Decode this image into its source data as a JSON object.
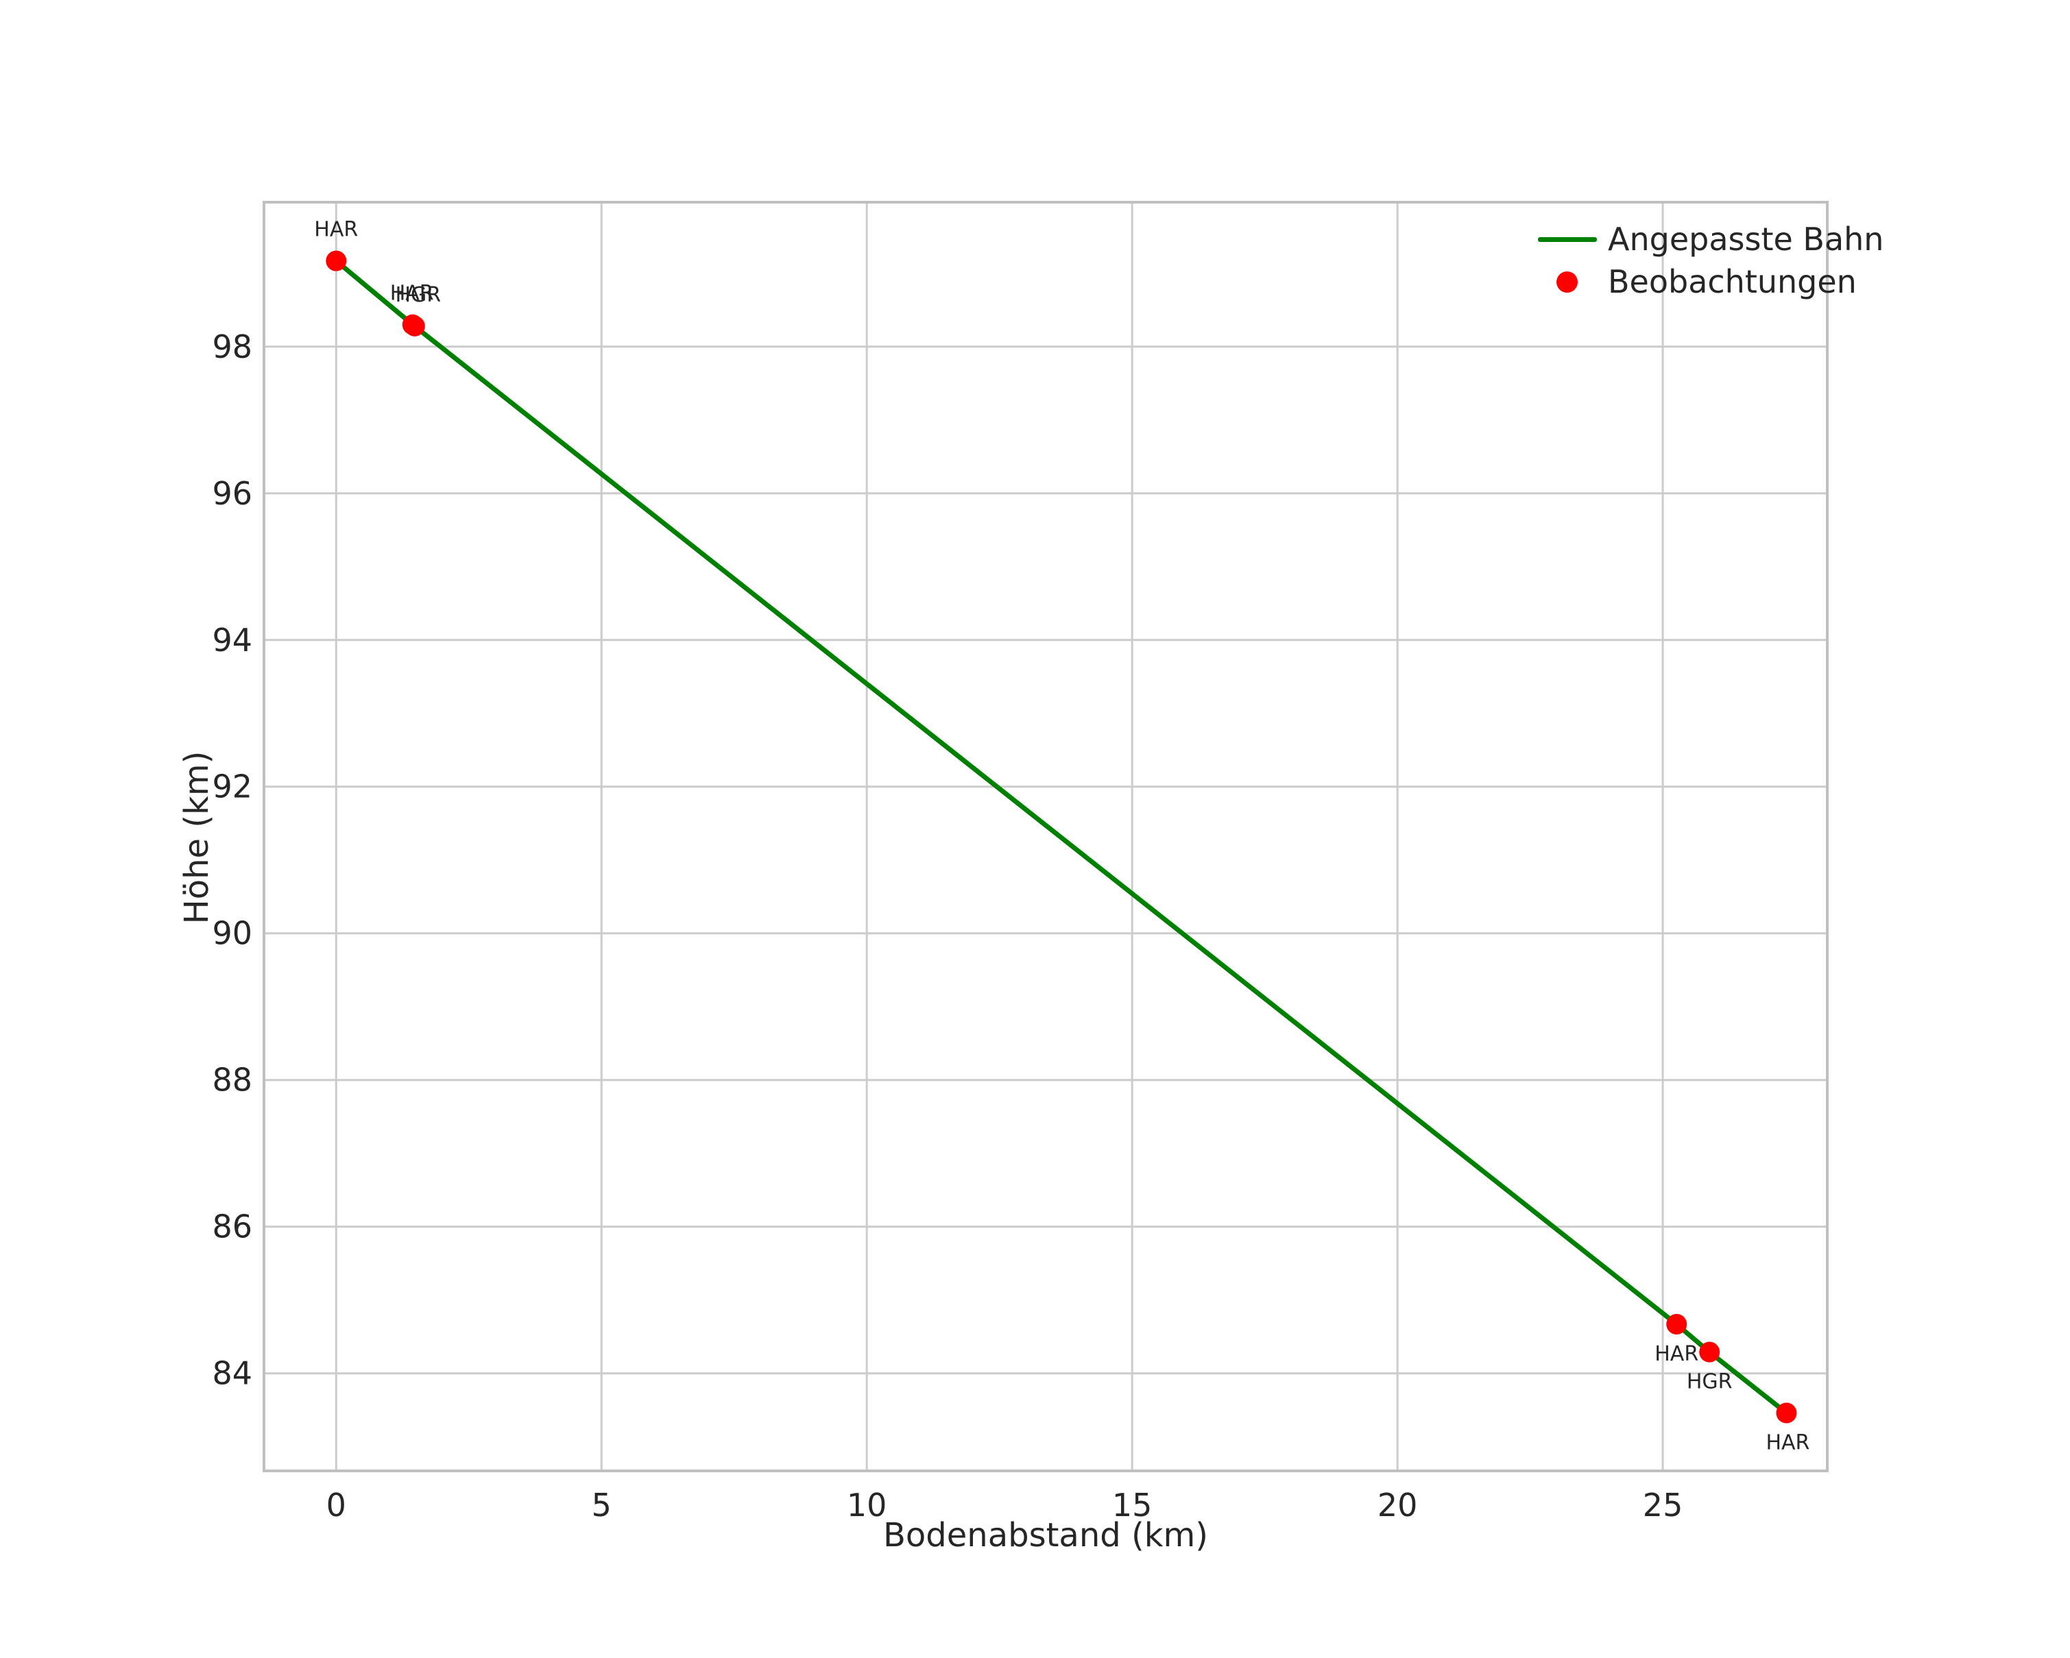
{
  "chart_data": {
    "type": "line",
    "title": "",
    "xlabel": "Bodenabstand (km)",
    "ylabel": "Höhe (km)",
    "xlim": [
      -1.36,
      28.1
    ],
    "ylim": [
      82.67,
      99.97
    ],
    "xticks": [
      0,
      5,
      10,
      15,
      20,
      25
    ],
    "yticks": [
      84,
      86,
      88,
      90,
      92,
      94,
      96,
      98
    ],
    "grid": true,
    "legend_position": "upper right",
    "colors": {
      "line": "#008000",
      "marker": "#ff0000",
      "grid": "#cccccc",
      "spine": "#c0c0c0",
      "text": "#262626",
      "background": "#ffffff"
    },
    "series": [
      {
        "name": "Angepasste Bahn",
        "type": "line",
        "color": "#008000",
        "points": [
          [
            0.0,
            99.17
          ],
          [
            1.46,
            98.29
          ],
          [
            25.26,
            84.67
          ],
          [
            25.88,
            84.29
          ],
          [
            27.33,
            83.46
          ]
        ]
      },
      {
        "name": "Beobachtungen",
        "type": "scatter",
        "color": "#ff0000",
        "points": [
          {
            "x": 0.0,
            "y": 99.17,
            "label": "HAR",
            "label_side": "above",
            "dx": 0
          },
          {
            "x": 1.44,
            "y": 98.3,
            "label": "HAR",
            "label_side": "above",
            "dx": -1
          },
          {
            "x": 1.48,
            "y": 98.28,
            "label": "HGR",
            "label_side": "above",
            "dx": 5
          },
          {
            "x": 25.26,
            "y": 84.67,
            "label": "HAR",
            "label_side": "below",
            "dx": 0
          },
          {
            "x": 25.88,
            "y": 84.29,
            "label": "HGR",
            "label_side": "below",
            "dx": 0
          },
          {
            "x": 27.33,
            "y": 83.46,
            "label": "HAR",
            "label_side": "below",
            "dx": 2
          }
        ]
      }
    ]
  }
}
